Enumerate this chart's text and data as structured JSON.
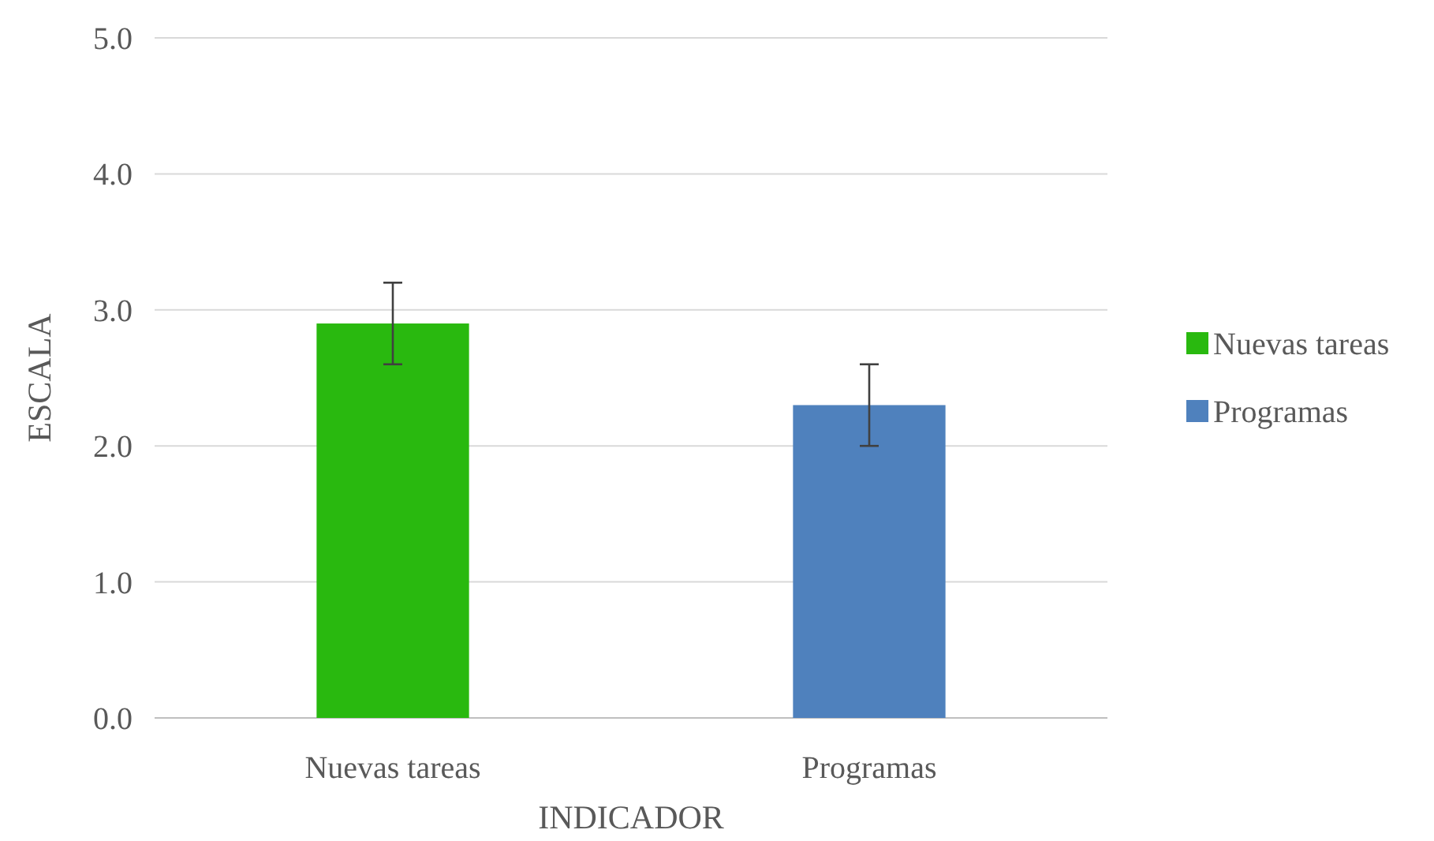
{
  "chart_data": {
    "type": "bar",
    "xlabel": "INDICADOR",
    "ylabel": "ESCALA",
    "categories": [
      "Nuevas tareas",
      "Programas"
    ],
    "series": [
      {
        "name": "Nuevas tareas",
        "color": "#29b90f",
        "values": [
          2.9,
          null
        ],
        "errors": [
          0.3,
          null
        ]
      },
      {
        "name": "Programas",
        "color": "#4f81bd",
        "values": [
          null,
          2.3
        ],
        "errors": [
          null,
          0.3
        ]
      }
    ],
    "ylim": [
      0,
      5
    ],
    "yticks": [
      {
        "value": 0,
        "label": "0.0"
      },
      {
        "value": 1,
        "label": "1.0"
      },
      {
        "value": 2,
        "label": "2.0"
      },
      {
        "value": 3,
        "label": "3.0"
      },
      {
        "value": 4,
        "label": "4.0"
      },
      {
        "value": 5,
        "label": "5.0"
      }
    ],
    "grid": "y",
    "legend": "right"
  }
}
